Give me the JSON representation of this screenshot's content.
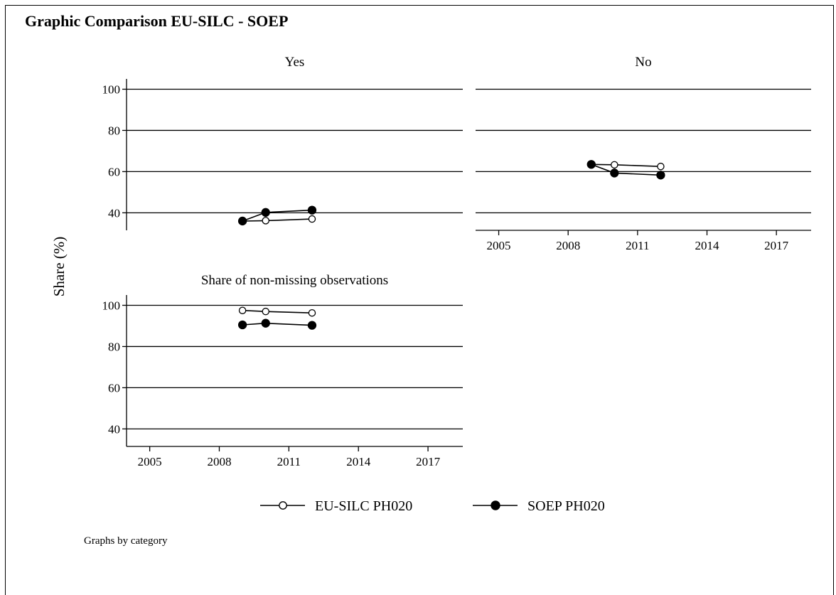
{
  "header": {
    "title": "Graphic Comparison EU-SILC - SOEP"
  },
  "footnote": "Graphs by category",
  "chart_data": {
    "type": "line",
    "ylabel": "Share (%)",
    "ylim": [
      31.5,
      105
    ],
    "yticks": [
      40,
      60,
      80,
      100
    ],
    "xlim": [
      2004,
      2018.5
    ],
    "xticks": [
      2005,
      2008,
      2011,
      2014,
      2017
    ],
    "grid": true,
    "legend_position": "bottom",
    "marker_colors": {
      "line": "#000000",
      "open_fill": "#ffffff",
      "filled_fill": "#000000"
    },
    "legend": [
      {
        "name": "EU-SILC PH020",
        "marker": "open-circle"
      },
      {
        "name": "SOEP PH020",
        "marker": "filled-circle"
      }
    ],
    "panels": [
      {
        "title": "Yes",
        "series": [
          {
            "name": "EU-SILC PH020",
            "x": [
              2009,
              2010,
              2012
            ],
            "y": [
              36,
              36.2,
              37
            ]
          },
          {
            "name": "SOEP PH020",
            "x": [
              2009,
              2010,
              2012
            ],
            "y": [
              36,
              40.2,
              41.3
            ]
          }
        ]
      },
      {
        "title": "No",
        "series": [
          {
            "name": "EU-SILC PH020",
            "x": [
              2009,
              2010,
              2012
            ],
            "y": [
              63.5,
              63.3,
              62.5
            ]
          },
          {
            "name": "SOEP PH020",
            "x": [
              2009,
              2010,
              2012
            ],
            "y": [
              63.5,
              59.3,
              58.3
            ]
          }
        ]
      },
      {
        "title": "Share of non-missing observations",
        "series": [
          {
            "name": "EU-SILC PH020",
            "x": [
              2009,
              2010,
              2012
            ],
            "y": [
              97.5,
              97,
              96.3
            ]
          },
          {
            "name": "SOEP PH020",
            "x": [
              2009,
              2010,
              2012
            ],
            "y": [
              90.5,
              91.3,
              90.3
            ]
          }
        ]
      }
    ]
  }
}
